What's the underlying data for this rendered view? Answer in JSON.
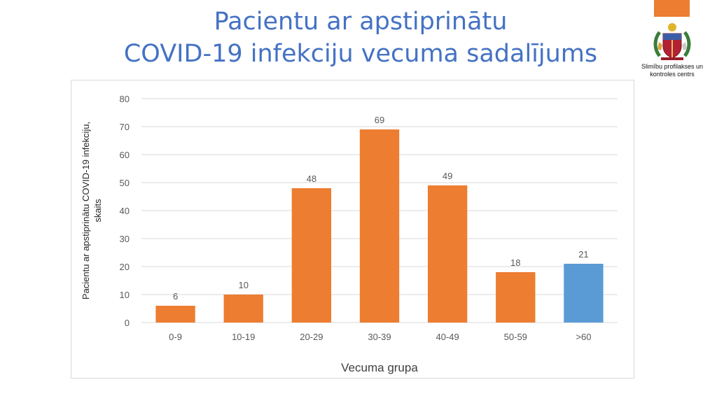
{
  "slide": {
    "title_lines": [
      "Pacientu ar apstiprinātu",
      "COVID-19 infekciju vecuma sadalījums"
    ],
    "logo_text_lines": [
      "Slimību profilakses un",
      "kontroles centrs"
    ],
    "logo_icon": "latvia-coat-of-arms-icon"
  },
  "colors": {
    "title": "#4472c4",
    "accent": "#ed7d31",
    "bar_default": "#ed7d31",
    "bar_highlight": "#5b9bd5",
    "axis_text": "#595959",
    "grid": "#d9d9d9"
  },
  "chart_data": {
    "type": "bar",
    "title": "",
    "xlabel": "Vecuma grupa",
    "ylabel_lines": [
      "Pacientu ar apstiprinātu COVID-19 infekciju,",
      "skaits"
    ],
    "categories": [
      "0-9",
      "10-19",
      "20-29",
      "30-39",
      "40-49",
      "50-59",
      ">60"
    ],
    "values": [
      6,
      10,
      48,
      69,
      49,
      18,
      21
    ],
    "bar_colors": [
      "#ed7d31",
      "#ed7d31",
      "#ed7d31",
      "#ed7d31",
      "#ed7d31",
      "#ed7d31",
      "#5b9bd5"
    ],
    "data_labels": true,
    "ylim": [
      0,
      80
    ],
    "yticks": [
      0,
      10,
      20,
      30,
      40,
      50,
      60,
      70,
      80
    ],
    "grid": true,
    "legend": "none"
  }
}
